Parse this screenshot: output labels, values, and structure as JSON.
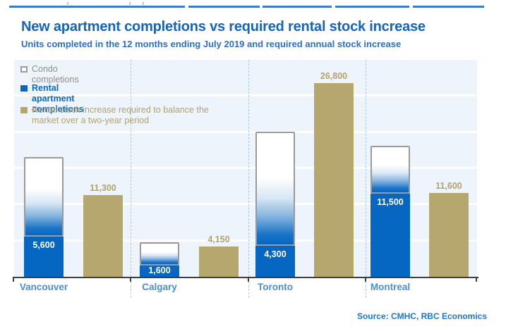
{
  "page": {
    "title": "New apartment completions vs required rental stock increase",
    "subtitle": "Units completed in the 12 months ending July 2019 and required annual stock increase",
    "source": "Source: CMHC, RBC Economics"
  },
  "legend": {
    "items": [
      {
        "label": "Condo completions"
      },
      {
        "label": "Rental apartment completions"
      },
      {
        "label": "Rental stock increase required to balance the market over a two-year period"
      }
    ]
  },
  "colors": {
    "title_blue": "#1565bd",
    "rental_blue": "#0667c2",
    "stock_tan": "#b5a76e",
    "condo_border_gray": "#9a9a9a",
    "plot_background": "#edf4fb",
    "city_label_blue": "#4a8fd5",
    "condo_legend_gray": "#8f8f8f",
    "tan_text": "#b3a26b",
    "source_blue": "#1c76d2",
    "axis_dark": "#3f3f3f"
  },
  "chart_data": {
    "type": "bar",
    "subtype": "stacked completions bar beside single requirement bar per city",
    "title": "New apartment completions vs required rental stock increase",
    "subtitle": "Units completed in the 12 months ending July 2019 and required annual stock increase",
    "categories": [
      "Vancouver",
      "Calgary",
      "Toronto",
      "Montreal"
    ],
    "series": [
      {
        "name": "Condo completions",
        "stack": "completions",
        "values": [
          11000,
          3200,
          15800,
          6600
        ],
        "values_estimated_from_bar_height": true,
        "data_labels": [
          null,
          null,
          null,
          null
        ]
      },
      {
        "name": "Rental apartment completions",
        "stack": "completions",
        "values": [
          5600,
          1600,
          4300,
          11500
        ],
        "data_labels": [
          "5,600",
          "1,600",
          "4,300",
          "11,500"
        ]
      },
      {
        "name": "Rental stock increase required to balance the market over a two-year period",
        "stack": null,
        "values": [
          11300,
          4150,
          26800,
          11600
        ],
        "data_labels": [
          "11,300",
          "4,150",
          "26,800",
          "11,600"
        ]
      }
    ],
    "ylim": [
      0,
      30000
    ],
    "gridline_step": 5000,
    "grid": "horizontal white lines, no y-axis tick labels",
    "legend_position": "top-left inside plot",
    "source": "Source: CMHC, RBC Economics"
  }
}
